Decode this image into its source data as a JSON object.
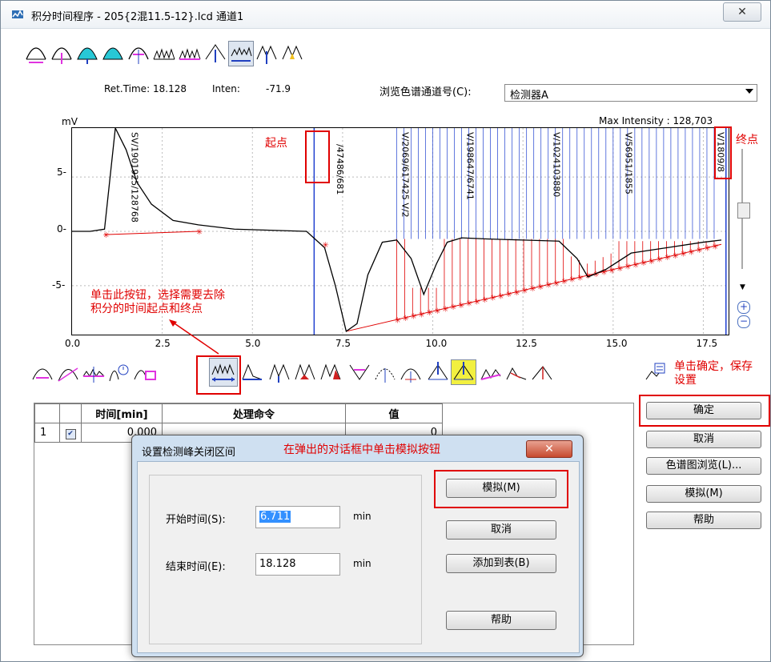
{
  "window": {
    "title": "积分时间程序 - 205{2混11.5-12}.lcd 通道1",
    "close_glyph": "✕"
  },
  "info": {
    "ret_time_label": "Ret.Time:",
    "ret_time_value": "18.128",
    "inten_label": "Inten:",
    "inten_value": "-71.9"
  },
  "channel": {
    "label": "浏览色谱通道号(C):",
    "selected": "检测器A"
  },
  "plot": {
    "unit": "mV",
    "max_intensity": "Max Intensity : 128,703",
    "y_ticks": [
      "5-",
      "0-",
      "-5-"
    ],
    "x_ticks": [
      "0.0",
      "2.5",
      "5.0",
      "7.5",
      "10.0",
      "12.5",
      "15.0",
      "17.5"
    ],
    "vlabel_1": "SV/1901925/128768",
    "vlabel_2": "/47486/681",
    "vlabel_3": "V/2069/617425 V/2",
    "vlabel_4": "V/198647/6741",
    "vlabel_5": "V/1024103880",
    "vlabel_6": "V/56951/1855",
    "vlabel_7": "V/1809/8"
  },
  "annotations": {
    "start": "起点",
    "end": "终点",
    "toolbar_hint_1": "单击此按钮，选择需要去除",
    "toolbar_hint_2": "积分的时间起点和终点",
    "ok_hint_1": "单击确定，保存",
    "ok_hint_2": "设置",
    "dialog_hint": "在弹出的对话框中单击模拟按钮"
  },
  "table": {
    "headers": [
      "时间[min]",
      "处理命令",
      "值"
    ],
    "rows": [
      {
        "index": "1",
        "checked": true,
        "time": "0.000",
        "command": "",
        "value": "0"
      }
    ]
  },
  "right_buttons": {
    "ok": "确定",
    "cancel": "取消",
    "browse": "色谱图浏览(L)...",
    "simulate": "模拟(M)",
    "help": "帮助"
  },
  "dialog": {
    "title": "设置检测峰关闭区间",
    "start_label": "开始时间(S):",
    "start_value": "6.711",
    "end_label": "结束时间(E):",
    "end_value": "18.128",
    "unit": "min",
    "simulate": "模拟(M)",
    "cancel": "取消",
    "add_to_table": "添加到表(B)",
    "help": "帮助",
    "close_glyph": "✕"
  },
  "chart_data": {
    "type": "line",
    "title": "",
    "xlabel": "",
    "ylabel": "mV",
    "xlim": [
      0,
      18.2
    ],
    "ylim": [
      -9.5,
      9.5
    ],
    "x": [
      0.0,
      0.5,
      0.9,
      1.2,
      1.5,
      1.8,
      2.2,
      2.8,
      3.5,
      4.5,
      5.5,
      6.5,
      7.0,
      7.3,
      7.6,
      7.9,
      8.2,
      8.6,
      9.0,
      9.4,
      9.75,
      10.1,
      10.4,
      10.8,
      11.5,
      12.5,
      13.5,
      14.0,
      14.3,
      14.8,
      15.5,
      16.5,
      17.5,
      18.0
    ],
    "y": [
      0.0,
      0.0,
      0.2,
      9.5,
      7.5,
      4.5,
      2.5,
      1.0,
      0.6,
      0.2,
      0.1,
      0.0,
      -1.5,
      -5.0,
      -9.2,
      -8.5,
      -4.0,
      -1.0,
      -0.8,
      -2.5,
      -5.8,
      -3.0,
      -1.0,
      -0.6,
      -0.7,
      -0.8,
      -0.9,
      -2.5,
      -4.2,
      -3.5,
      -2.0,
      -1.5,
      -1.0,
      -0.8
    ],
    "marker_times": [
      6.711,
      18.128
    ]
  }
}
